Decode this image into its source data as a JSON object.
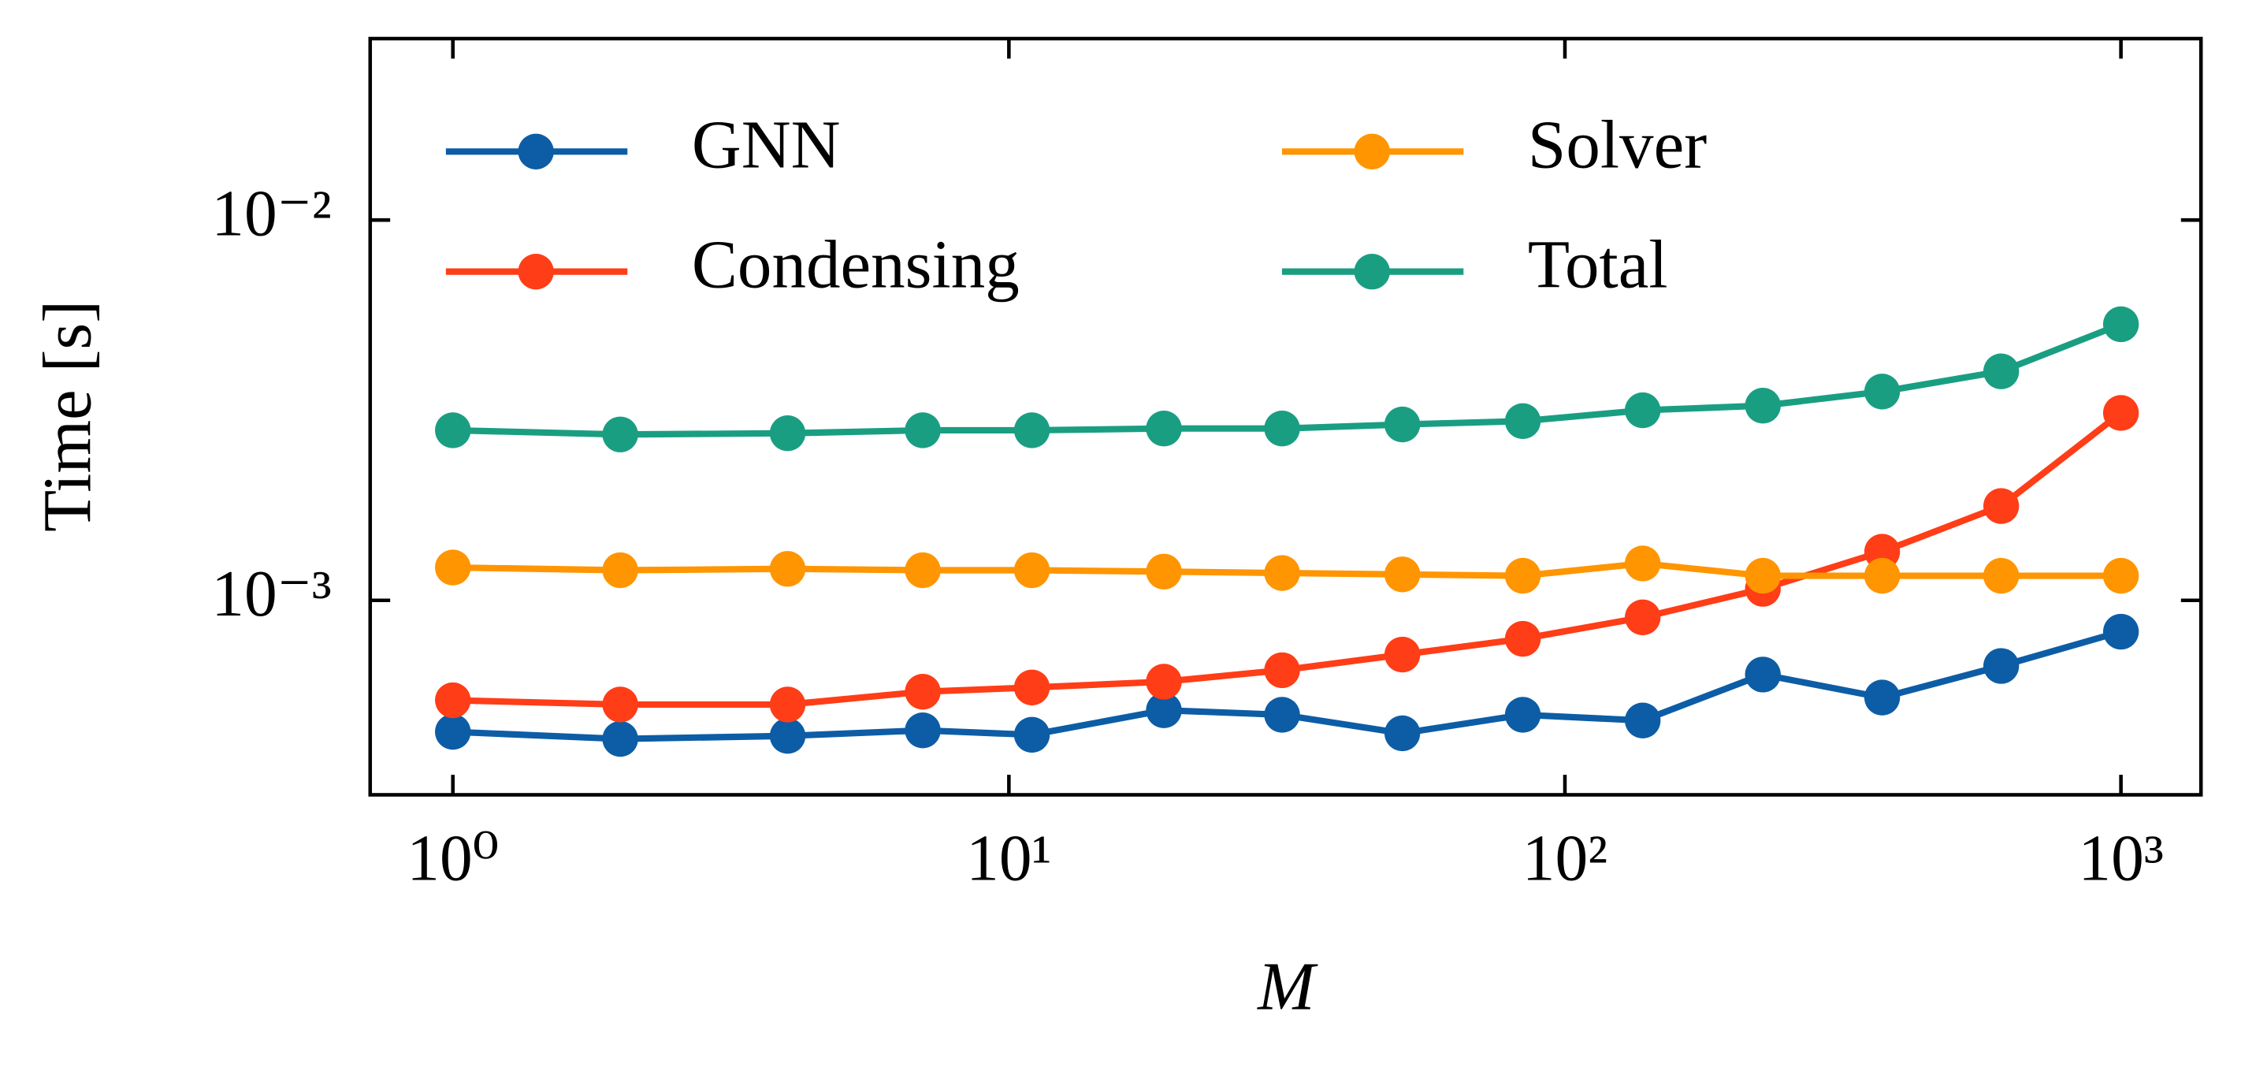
{
  "chart_data": {
    "type": "line",
    "xlabel": "M",
    "ylabel": "Time [s]",
    "xscale": "log",
    "yscale": "log",
    "x": [
      1,
      2,
      4,
      7,
      11,
      19,
      31,
      51,
      84,
      138,
      227,
      372,
      609,
      1000
    ],
    "series": [
      {
        "name": "GNN",
        "color": "#0c5da5",
        "values": [
          0.000451,
          0.000432,
          0.00044,
          0.000455,
          0.000443,
          0.000514,
          0.0005,
          0.000447,
          0.0005,
          0.000483,
          0.000638,
          0.000555,
          0.000672,
          0.000827
        ]
      },
      {
        "name": "Condensing",
        "color": "#ff3d17",
        "values": [
          0.000546,
          0.000532,
          0.000532,
          0.000575,
          0.00059,
          0.000611,
          0.000655,
          0.00072,
          0.000792,
          0.000902,
          0.001072,
          0.001342,
          0.00177,
          0.00311
        ]
      },
      {
        "name": "Solver",
        "color": "#ff9500",
        "values": [
          0.00122,
          0.0012,
          0.00121,
          0.0012,
          0.0012,
          0.00119,
          0.00118,
          0.00117,
          0.00116,
          0.00125,
          0.00116,
          0.00116,
          0.00116,
          0.00116
        ]
      },
      {
        "name": "Total",
        "color": "#1a9e82",
        "values": [
          0.0028,
          0.00273,
          0.00275,
          0.0028,
          0.0028,
          0.00283,
          0.00283,
          0.0029,
          0.00296,
          0.00316,
          0.00325,
          0.00354,
          0.004,
          0.00532
        ]
      }
    ],
    "xlim": [
      0.71,
      1393
    ],
    "ylim": [
      0.000308,
      0.03
    ],
    "xticks": [
      {
        "value": 1,
        "label": "10⁰"
      },
      {
        "value": 10,
        "label": "10¹"
      },
      {
        "value": 100,
        "label": "10²"
      },
      {
        "value": 1000,
        "label": "10³"
      }
    ],
    "yticks": [
      {
        "value": 0.001,
        "label": "10⁻³"
      },
      {
        "value": 0.01,
        "label": "10⁻²"
      }
    ],
    "legend": "upper left",
    "legend_columns": 2
  }
}
